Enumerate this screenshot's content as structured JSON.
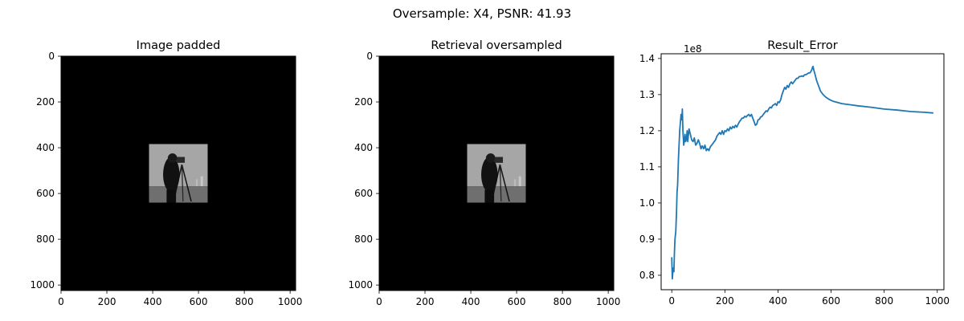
{
  "figure": {
    "suptitle": "Oversample: X4, PSNR: 41.93"
  },
  "chart_data": [
    {
      "type": "image",
      "title": "Image padded",
      "xlim": [
        0,
        1024
      ],
      "ylim": [
        1024,
        0
      ],
      "xticks": [
        0,
        200,
        400,
        600,
        800,
        1000
      ],
      "yticks": [
        0,
        200,
        400,
        600,
        800,
        1000
      ],
      "content": {
        "background": "#000000",
        "patch_extent": [
          384,
          640
        ],
        "patch_description": "cameraman-photo-icon"
      }
    },
    {
      "type": "image",
      "title": "Retrieval oversampled",
      "xlim": [
        0,
        1024
      ],
      "ylim": [
        1024,
        0
      ],
      "xticks": [
        0,
        200,
        400,
        600,
        800,
        1000
      ],
      "yticks": [
        0,
        200,
        400,
        600,
        800,
        1000
      ],
      "content": {
        "background": "#000000",
        "patch_extent": [
          384,
          640
        ],
        "patch_description": "cameraman-photo-icon"
      }
    },
    {
      "type": "line",
      "title": "Result_Error",
      "offset_label": "1e8",
      "xlim": [
        -40,
        1025
      ],
      "ylim": [
        0.76,
        1.413
      ],
      "xticks": [
        0,
        200,
        400,
        600,
        800,
        1000
      ],
      "yticks": [
        0.8,
        0.9,
        1.0,
        1.1,
        1.2,
        1.3,
        1.4
      ],
      "ytick_labels": [
        "0.8",
        "0.9",
        "1.0",
        "1.1",
        "1.2",
        "1.3",
        "1.4"
      ],
      "line_color": "#1f77b4",
      "series": [
        {
          "x": [
            0,
            2,
            5,
            8,
            10,
            12,
            15,
            18,
            20,
            22,
            25,
            30,
            35,
            38,
            40,
            42,
            45,
            48,
            50,
            52,
            55,
            58,
            60,
            65,
            70,
            75,
            80,
            85,
            90,
            95,
            100,
            105,
            110,
            115,
            120,
            125,
            130,
            135,
            140,
            145,
            150,
            155,
            160,
            165,
            170,
            175,
            180,
            185,
            190,
            195,
            200,
            205,
            210,
            215,
            220,
            225,
            230,
            235,
            240,
            245,
            250,
            255,
            260,
            265,
            270,
            275,
            280,
            285,
            290,
            295,
            300,
            305,
            310,
            315,
            320,
            325,
            330,
            335,
            340,
            345,
            350,
            355,
            360,
            365,
            370,
            375,
            380,
            385,
            390,
            395,
            400,
            405,
            410,
            415,
            420,
            425,
            430,
            435,
            440,
            445,
            450,
            455,
            460,
            465,
            470,
            475,
            480,
            485,
            490,
            495,
            500,
            505,
            510,
            515,
            520,
            525,
            528,
            530,
            532,
            535,
            540,
            545,
            550,
            555,
            560,
            570,
            580,
            590,
            600,
            610,
            620,
            640,
            660,
            680,
            700,
            750,
            800,
            850,
            900,
            950,
            985
          ],
          "y": [
            0.85,
            0.79,
            0.82,
            0.81,
            0.86,
            0.9,
            0.92,
            0.98,
            1.03,
            1.05,
            1.12,
            1.2,
            1.245,
            1.23,
            1.26,
            1.2,
            1.16,
            1.175,
            1.19,
            1.17,
            1.175,
            1.2,
            1.17,
            1.205,
            1.19,
            1.175,
            1.17,
            1.18,
            1.16,
            1.165,
            1.175,
            1.165,
            1.15,
            1.158,
            1.15,
            1.16,
            1.145,
            1.15,
            1.145,
            1.155,
            1.16,
            1.165,
            1.17,
            1.175,
            1.185,
            1.19,
            1.195,
            1.19,
            1.2,
            1.19,
            1.2,
            1.198,
            1.205,
            1.2,
            1.21,
            1.205,
            1.212,
            1.208,
            1.215,
            1.21,
            1.218,
            1.225,
            1.23,
            1.235,
            1.235,
            1.24,
            1.238,
            1.242,
            1.245,
            1.24,
            1.245,
            1.235,
            1.225,
            1.215,
            1.218,
            1.23,
            1.232,
            1.238,
            1.24,
            1.245,
            1.25,
            1.255,
            1.253,
            1.26,
            1.265,
            1.263,
            1.27,
            1.272,
            1.275,
            1.27,
            1.28,
            1.278,
            1.285,
            1.3,
            1.31,
            1.32,
            1.315,
            1.325,
            1.32,
            1.33,
            1.335,
            1.33,
            1.335,
            1.34,
            1.345,
            1.345,
            1.35,
            1.35,
            1.352,
            1.35,
            1.355,
            1.355,
            1.357,
            1.36,
            1.36,
            1.365,
            1.37,
            1.375,
            1.378,
            1.368,
            1.355,
            1.34,
            1.33,
            1.32,
            1.31,
            1.3,
            1.293,
            1.288,
            1.284,
            1.281,
            1.279,
            1.275,
            1.273,
            1.271,
            1.269,
            1.265,
            1.26,
            1.257,
            1.253,
            1.251,
            1.249
          ]
        }
      ]
    }
  ]
}
